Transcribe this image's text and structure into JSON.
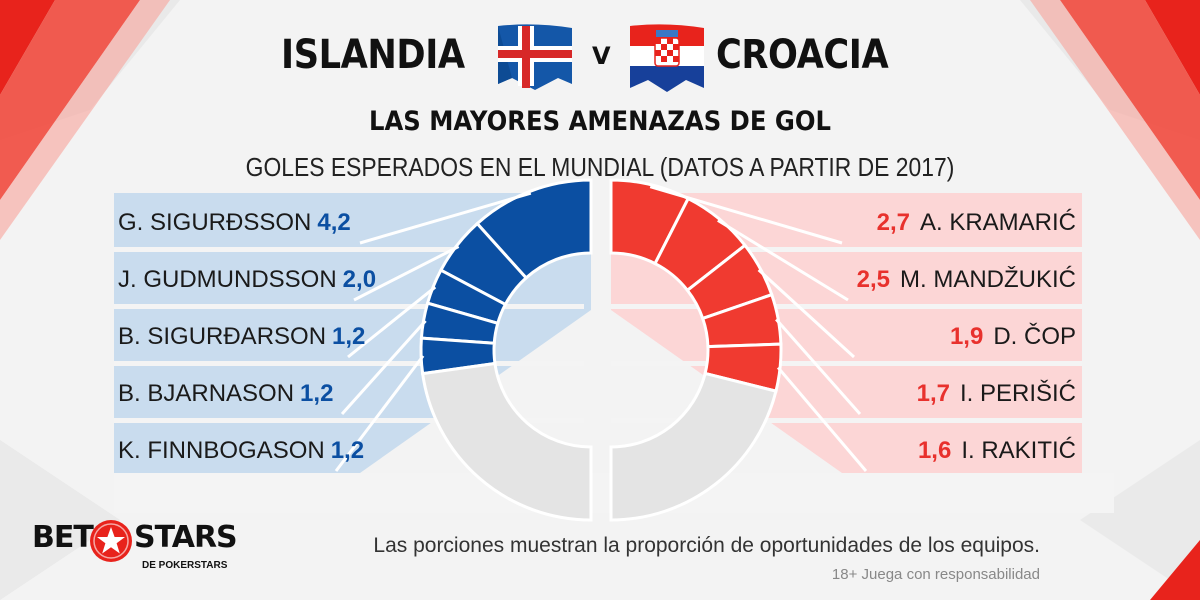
{
  "header": {
    "team_left": "ISLANDIA",
    "vs": "V",
    "team_right": "CROACIA",
    "title": "LAS MAYORES AMENAZAS DE GOL",
    "subtitle": "GOLES ESPERADOS EN EL MUNDIAL (DATOS A PARTIR DE 2017)"
  },
  "chart_data": [
    {
      "type": "pie",
      "team": "ISLANDIA",
      "color": "#0b4fa2",
      "rest_color": "#e4e4e4",
      "categories": [
        "G. SIGURÐSSON",
        "J. GUDMUNDSSON",
        "B. SIGURÐARSON",
        "B. BJARNASON",
        "K. FINNBOGASON"
      ],
      "values": [
        4.2,
        2.0,
        1.2,
        1.2,
        1.2
      ],
      "labels": [
        "4,2",
        "2,0",
        "1,2",
        "1,2",
        "1,2"
      ]
    },
    {
      "type": "pie",
      "team": "CROACIA",
      "color": "#f03a30",
      "rest_color": "#e4e4e4",
      "categories": [
        "A. KRAMARIĆ",
        "M. MANDŽUKIĆ",
        "D. ČOP",
        "I. PERIŠIĆ",
        "I. RAKITIĆ"
      ],
      "values": [
        2.7,
        2.5,
        1.9,
        1.7,
        1.6
      ],
      "labels": [
        "2,7",
        "2,5",
        "1,9",
        "1,7",
        "1,6"
      ]
    }
  ],
  "footer": {
    "note": "Las porciones muestran la proporción de oportunidades de los equipos.",
    "responsible": "18+ Juega con responsabilidad"
  },
  "brand": {
    "bet": "BET",
    "stars": "STARS",
    "sub": "DE POKERSTARS"
  },
  "colors": {
    "left_panel": "#c9dcee",
    "right_panel": "#fcd6d6",
    "accent_red": "#e8312d",
    "accent_blue": "#0b4fa2"
  }
}
